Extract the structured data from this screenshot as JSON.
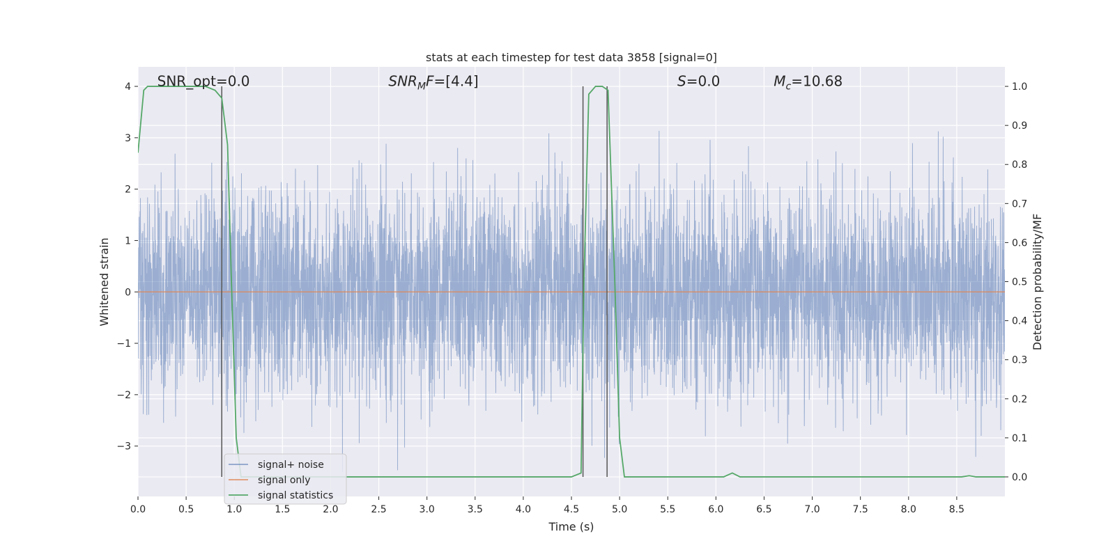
{
  "chart_data": {
    "type": "line",
    "title": "stats at each timestep for test data 3858 [signal=0]",
    "xlabel": "Time (s)",
    "ylabel_left": "Whitened strain",
    "ylabel_right": "Detection probability/MF",
    "xlim": [
      0.0,
      9.0
    ],
    "ylim_left": [
      -3.98,
      4.38
    ],
    "ylim_right": [
      -0.05,
      1.05
    ],
    "grid": true,
    "x_ticks": [
      0.0,
      0.5,
      1.0,
      1.5,
      2.0,
      2.5,
      3.0,
      3.5,
      4.0,
      4.5,
      5.0,
      5.5,
      6.0,
      6.5,
      7.0,
      7.5,
      8.0,
      8.5
    ],
    "x_tick_labels": [
      "0.0",
      "0.5",
      "1.0",
      "1.5",
      "2.0",
      "2.5",
      "3.0",
      "3.5",
      "4.0",
      "4.5",
      "5.0",
      "5.5",
      "6.0",
      "6.5",
      "7.0",
      "7.5",
      "8.0",
      "8.5"
    ],
    "y_left_ticks": [
      -3,
      -2,
      -1,
      0,
      1,
      2,
      3,
      4
    ],
    "y_left_tick_labels": [
      "−3",
      "−2",
      "−1",
      "0",
      "1",
      "2",
      "3",
      "4"
    ],
    "y_right_ticks": [
      0.0,
      0.1,
      0.2,
      0.3,
      0.4,
      0.5,
      0.6,
      0.7,
      0.8,
      0.9,
      1.0
    ],
    "y_right_tick_labels": [
      "0.0",
      "0.1",
      "0.2",
      "0.3",
      "0.4",
      "0.5",
      "0.6",
      "0.7",
      "0.8",
      "0.9",
      "1.0"
    ],
    "annotations": [
      {
        "prefix": "SNR_opt",
        "sub": "",
        "suffix": "=0.0",
        "italic": false,
        "x": 0.2,
        "y": 4.1
      },
      {
        "prefix": "SNR",
        "sub": "M",
        "suffix": "F=[4.4]",
        "italic": true,
        "x": 2.6,
        "y": 4.1
      },
      {
        "prefix": "S",
        "sub": "",
        "suffix": "=0.0",
        "italic": true,
        "x": 5.6,
        "y": 4.1
      },
      {
        "prefix": "M",
        "sub": "c",
        "suffix": "=10.68",
        "italic": true,
        "x": 6.6,
        "y": 4.1
      }
    ],
    "legend": {
      "placement": "lower-left",
      "entries": [
        "signal+ noise",
        "signal only",
        "signal statistics"
      ]
    },
    "series": [
      {
        "name": "signal+ noise",
        "axis": "left",
        "color": "#4c72b0",
        "style": "noise",
        "sample_rate": 512,
        "envelope_std": 1.0,
        "approx_range": [
          -3.7,
          4.0
        ]
      },
      {
        "name": "signal only",
        "axis": "left",
        "color": "#dd8452",
        "x": [
          0.0,
          9.0
        ],
        "y": [
          0.0,
          0.0
        ]
      },
      {
        "name": "signal statistics",
        "axis": "right",
        "color": "#55a868",
        "x": [
          0.0,
          0.06,
          0.1,
          0.2,
          0.3,
          0.4,
          0.5,
          0.6,
          0.7,
          0.8,
          0.87,
          0.93,
          0.97,
          1.02,
          1.07,
          1.1,
          1.5,
          2.0,
          2.5,
          3.0,
          3.5,
          4.0,
          4.5,
          4.6,
          4.63,
          4.68,
          4.75,
          4.82,
          4.88,
          4.95,
          5.0,
          5.05,
          5.5,
          6.0,
          6.08,
          6.17,
          6.25,
          6.5,
          7.0,
          8.0,
          8.55,
          8.63,
          8.7,
          9.0
        ],
        "y": [
          0.83,
          0.99,
          1.0,
          1.0,
          1.0,
          1.0,
          1.0,
          1.0,
          1.0,
          0.99,
          0.97,
          0.85,
          0.5,
          0.1,
          0.0,
          0.0,
          0.0,
          0.0,
          0.0,
          0.0,
          0.0,
          0.0,
          0.0,
          0.01,
          0.5,
          0.98,
          1.0,
          1.0,
          0.99,
          0.5,
          0.1,
          0.0,
          0.0,
          0.0,
          0.0,
          0.01,
          0.0,
          0.0,
          0.0,
          0.0,
          0.0,
          0.003,
          0.0,
          0.0
        ]
      }
    ],
    "vertical_lines": [
      0.87,
      4.62,
      4.87
    ],
    "vertical_line_color": "#555555"
  }
}
